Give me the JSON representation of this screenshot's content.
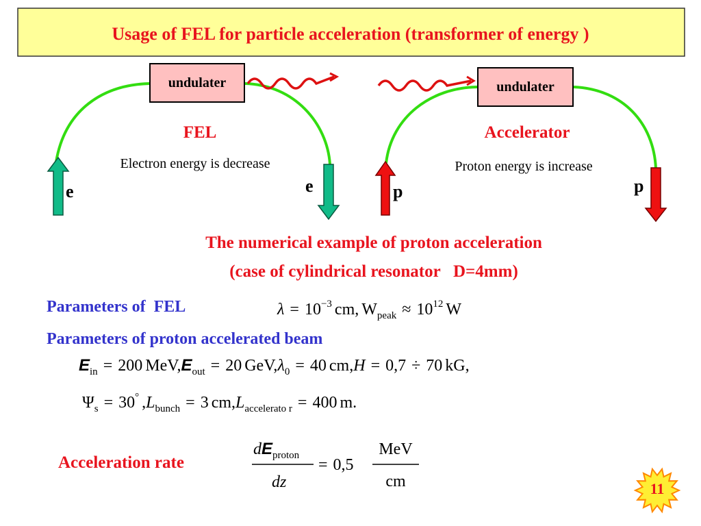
{
  "title": "Usage of FEL for particle acceleration (transformer of energy )",
  "left": {
    "box": "undulater",
    "heading": "FEL",
    "caption": "Electron energy is decrease",
    "label_in": "e",
    "label_out": "e"
  },
  "right": {
    "box": "undulater",
    "heading": "Accelerator",
    "caption": "Proton energy is increase",
    "label_in": "p",
    "label_out": "p"
  },
  "example": {
    "line1": "The numerical example of proton acceleration",
    "line2": "(case of cylindrical resonator   D=4mm)"
  },
  "fel_params": {
    "label": "Parameters of  FEL",
    "formula": [
      "λ",
      "=",
      "10",
      "−3",
      "cm,",
      "W",
      "peak",
      "≈",
      "10",
      "12",
      "W"
    ]
  },
  "beam": {
    "label": "Parameters of proton accelerated beam",
    "row1": [
      "E",
      "in",
      "=",
      "200",
      "MeV,",
      "E",
      "out",
      "=",
      "20",
      "GeV,",
      "λ",
      "0",
      "=",
      "40",
      "cm,",
      "H",
      "=",
      "0,7",
      "÷",
      "70",
      "kG,"
    ],
    "row2": [
      "Ψ",
      "s",
      "=",
      "30",
      "°",
      ",",
      "L",
      "bunch",
      "=",
      "3",
      "cm,",
      "L",
      "accelerato r",
      "=",
      "400",
      "m."
    ]
  },
  "rate": {
    "label": "Acceleration rate",
    "numerator": [
      "d",
      "E",
      "proton"
    ],
    "denominator": "dz",
    "equals": "=",
    "coefficient": "0,5",
    "unit_numerator": "MeV",
    "unit_denominator": "cm"
  },
  "page_number": "11"
}
